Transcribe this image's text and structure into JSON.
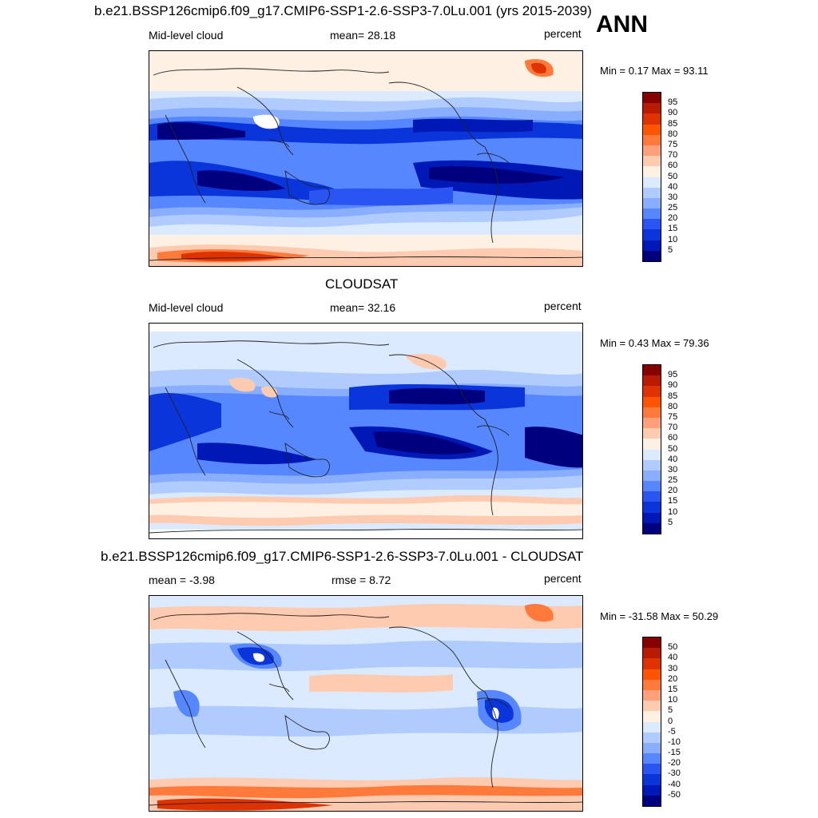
{
  "annotation": "ANN",
  "colors": {
    "positive_scale": [
      "#870000",
      "#b81b00",
      "#de3300",
      "#ff5500",
      "#ff7a3b",
      "#ffa07c",
      "#ffcbb0",
      "#fff0e4",
      "#dbeaff",
      "#b0ccff",
      "#8aaeff",
      "#5687ff",
      "#2a55f2",
      "#0a35da",
      "#0019b6",
      "#00007e"
    ],
    "difference_scale": [
      "#870000",
      "#b81b00",
      "#de3300",
      "#ff5500",
      "#ff7a3b",
      "#ffa07c",
      "#ffcbb0",
      "#fff0e4",
      "#dbeaff",
      "#b0ccff",
      "#8aaeff",
      "#5687ff",
      "#2a55f2",
      "#0a35da",
      "#0019b6",
      "#00007e"
    ],
    "coast": "#222222"
  },
  "panels": [
    {
      "id": "model",
      "title": "b.e21.BSSP126cmip6.f09_g17.CMIP6-SSP1-2.6-SSP3-7.0Lu.001 (yrs 2015-2039)",
      "left_label": "Mid-level cloud",
      "center_label": "mean=  28.18",
      "right_label": "percent",
      "minmax": "Min =   0.17 Max =  93.11"
    },
    {
      "id": "obs",
      "title": "CLOUDSAT",
      "left_label": "Mid-level cloud",
      "center_label": "mean=  32.16",
      "right_label": "percent",
      "minmax": "Min =   0.43 Max =  79.36"
    },
    {
      "id": "diff",
      "title": "b.e21.BSSP126cmip6.f09_g17.CMIP6-SSP1-2.6-SSP3-7.0Lu.001 - CLOUDSAT",
      "left_label": "mean =  -3.98",
      "center_label": "rmse =   8.72",
      "right_label": "percent",
      "minmax": "Min = -31.58 Max =  50.29"
    }
  ],
  "chart_data": [
    {
      "type": "heatmap",
      "variable": "Mid-level cloud",
      "units": "percent",
      "mean": 28.18,
      "min": 0.17,
      "max": 93.11,
      "colorbar_levels": [
        "95",
        "90",
        "85",
        "80",
        "75",
        "70",
        "60",
        "50",
        "40",
        "30",
        "25",
        "20",
        "15",
        "10",
        "5"
      ]
    },
    {
      "type": "heatmap",
      "variable": "Mid-level cloud",
      "units": "percent",
      "mean": 32.16,
      "min": 0.43,
      "max": 79.36,
      "colorbar_levels": [
        "95",
        "90",
        "85",
        "80",
        "75",
        "70",
        "60",
        "50",
        "40",
        "30",
        "25",
        "20",
        "15",
        "10",
        "5"
      ]
    },
    {
      "type": "heatmap",
      "units": "percent",
      "mean": -3.98,
      "rmse": 8.72,
      "min": -31.58,
      "max": 50.29,
      "colorbar_levels": [
        "50",
        "40",
        "30",
        "20",
        "15",
        "10",
        "5",
        "0",
        "-5",
        "-10",
        "-15",
        "-20",
        "-30",
        "-40",
        "-50"
      ]
    }
  ]
}
